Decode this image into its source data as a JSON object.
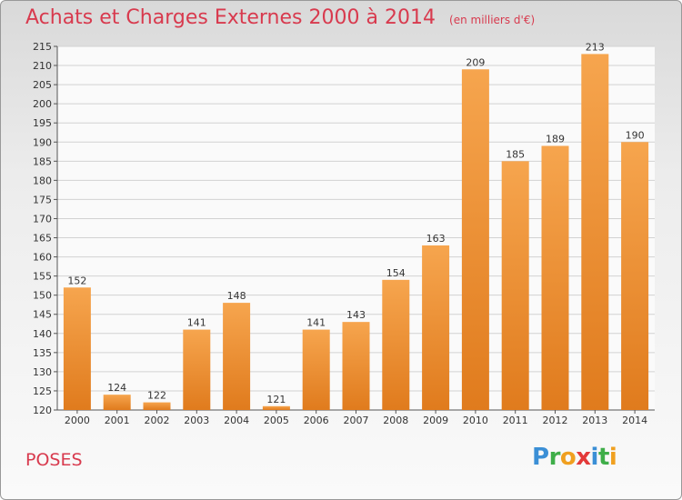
{
  "title": "Achats et Charges Externes 2000 à 2014",
  "unit": "(en milliers d'€)",
  "commune": "POSES",
  "logo": {
    "p": "P",
    "r": "r",
    "o": "o",
    "x": "x",
    "i1": "i",
    "t": "t",
    "i2": "i"
  },
  "colors": {
    "bar_light": "#f6a54e",
    "bar_dark": "#e07b1d",
    "title": "#d83a4e"
  },
  "chart_data": {
    "type": "bar",
    "categories": [
      "2000",
      "2001",
      "2002",
      "2003",
      "2004",
      "2005",
      "2006",
      "2007",
      "2008",
      "2009",
      "2010",
      "2011",
      "2012",
      "2013",
      "2014"
    ],
    "values": [
      152,
      124,
      122,
      141,
      148,
      121,
      141,
      143,
      154,
      163,
      209,
      185,
      189,
      213,
      190
    ],
    "ylim": [
      120,
      215
    ],
    "yticks": [
      120,
      125,
      130,
      135,
      140,
      145,
      150,
      155,
      160,
      165,
      170,
      175,
      180,
      185,
      190,
      195,
      200,
      205,
      210,
      215
    ],
    "grid": true,
    "data_labels": true
  }
}
